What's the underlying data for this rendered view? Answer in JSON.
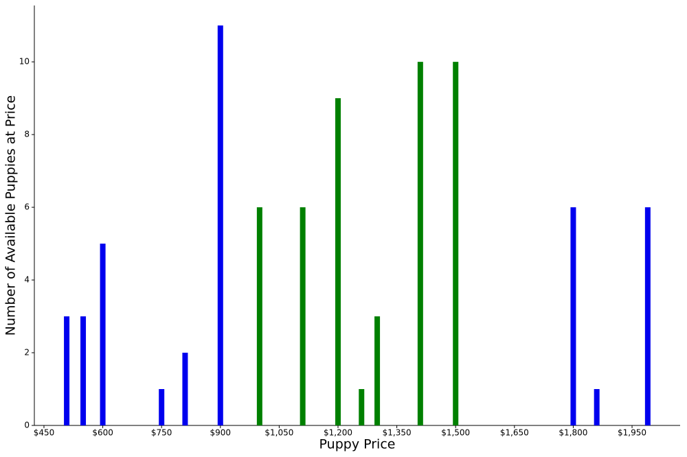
{
  "chart_data": {
    "type": "bar",
    "xlabel": "Puppy Price",
    "ylabel": "Number of Available Puppies at Price",
    "series": [
      {
        "color": "#0000ee",
        "x": [
          508,
          550,
          600,
          750,
          810,
          900,
          1800,
          1860,
          1990
        ],
        "values": [
          3,
          3,
          5,
          1,
          2,
          11,
          6,
          1,
          6
        ]
      },
      {
        "color": "#008000",
        "x": [
          1000,
          1110,
          1200,
          1260,
          1300,
          1410,
          1500
        ],
        "values": [
          6,
          6,
          9,
          1,
          3,
          10,
          10
        ]
      }
    ],
    "xlim": [
      425.5,
      2072.6
    ],
    "xticks": [
      {
        "value": 450,
        "label": "$450"
      },
      {
        "value": 600,
        "label": "$600"
      },
      {
        "value": 750,
        "label": "$750"
      },
      {
        "value": 900,
        "label": "$900"
      },
      {
        "value": 1050,
        "label": "$1,050"
      },
      {
        "value": 1200,
        "label": "$1,200"
      },
      {
        "value": 1350,
        "label": "$1,350"
      },
      {
        "value": 1500,
        "label": "$1,500"
      },
      {
        "value": 1650,
        "label": "$1,650"
      },
      {
        "value": 1800,
        "label": "$1,800"
      },
      {
        "value": 1950,
        "label": "$1,950"
      }
    ],
    "ylim": [
      0,
      11.55
    ],
    "yticks": [
      0,
      2,
      4,
      6,
      8,
      10
    ],
    "grid": false
  }
}
